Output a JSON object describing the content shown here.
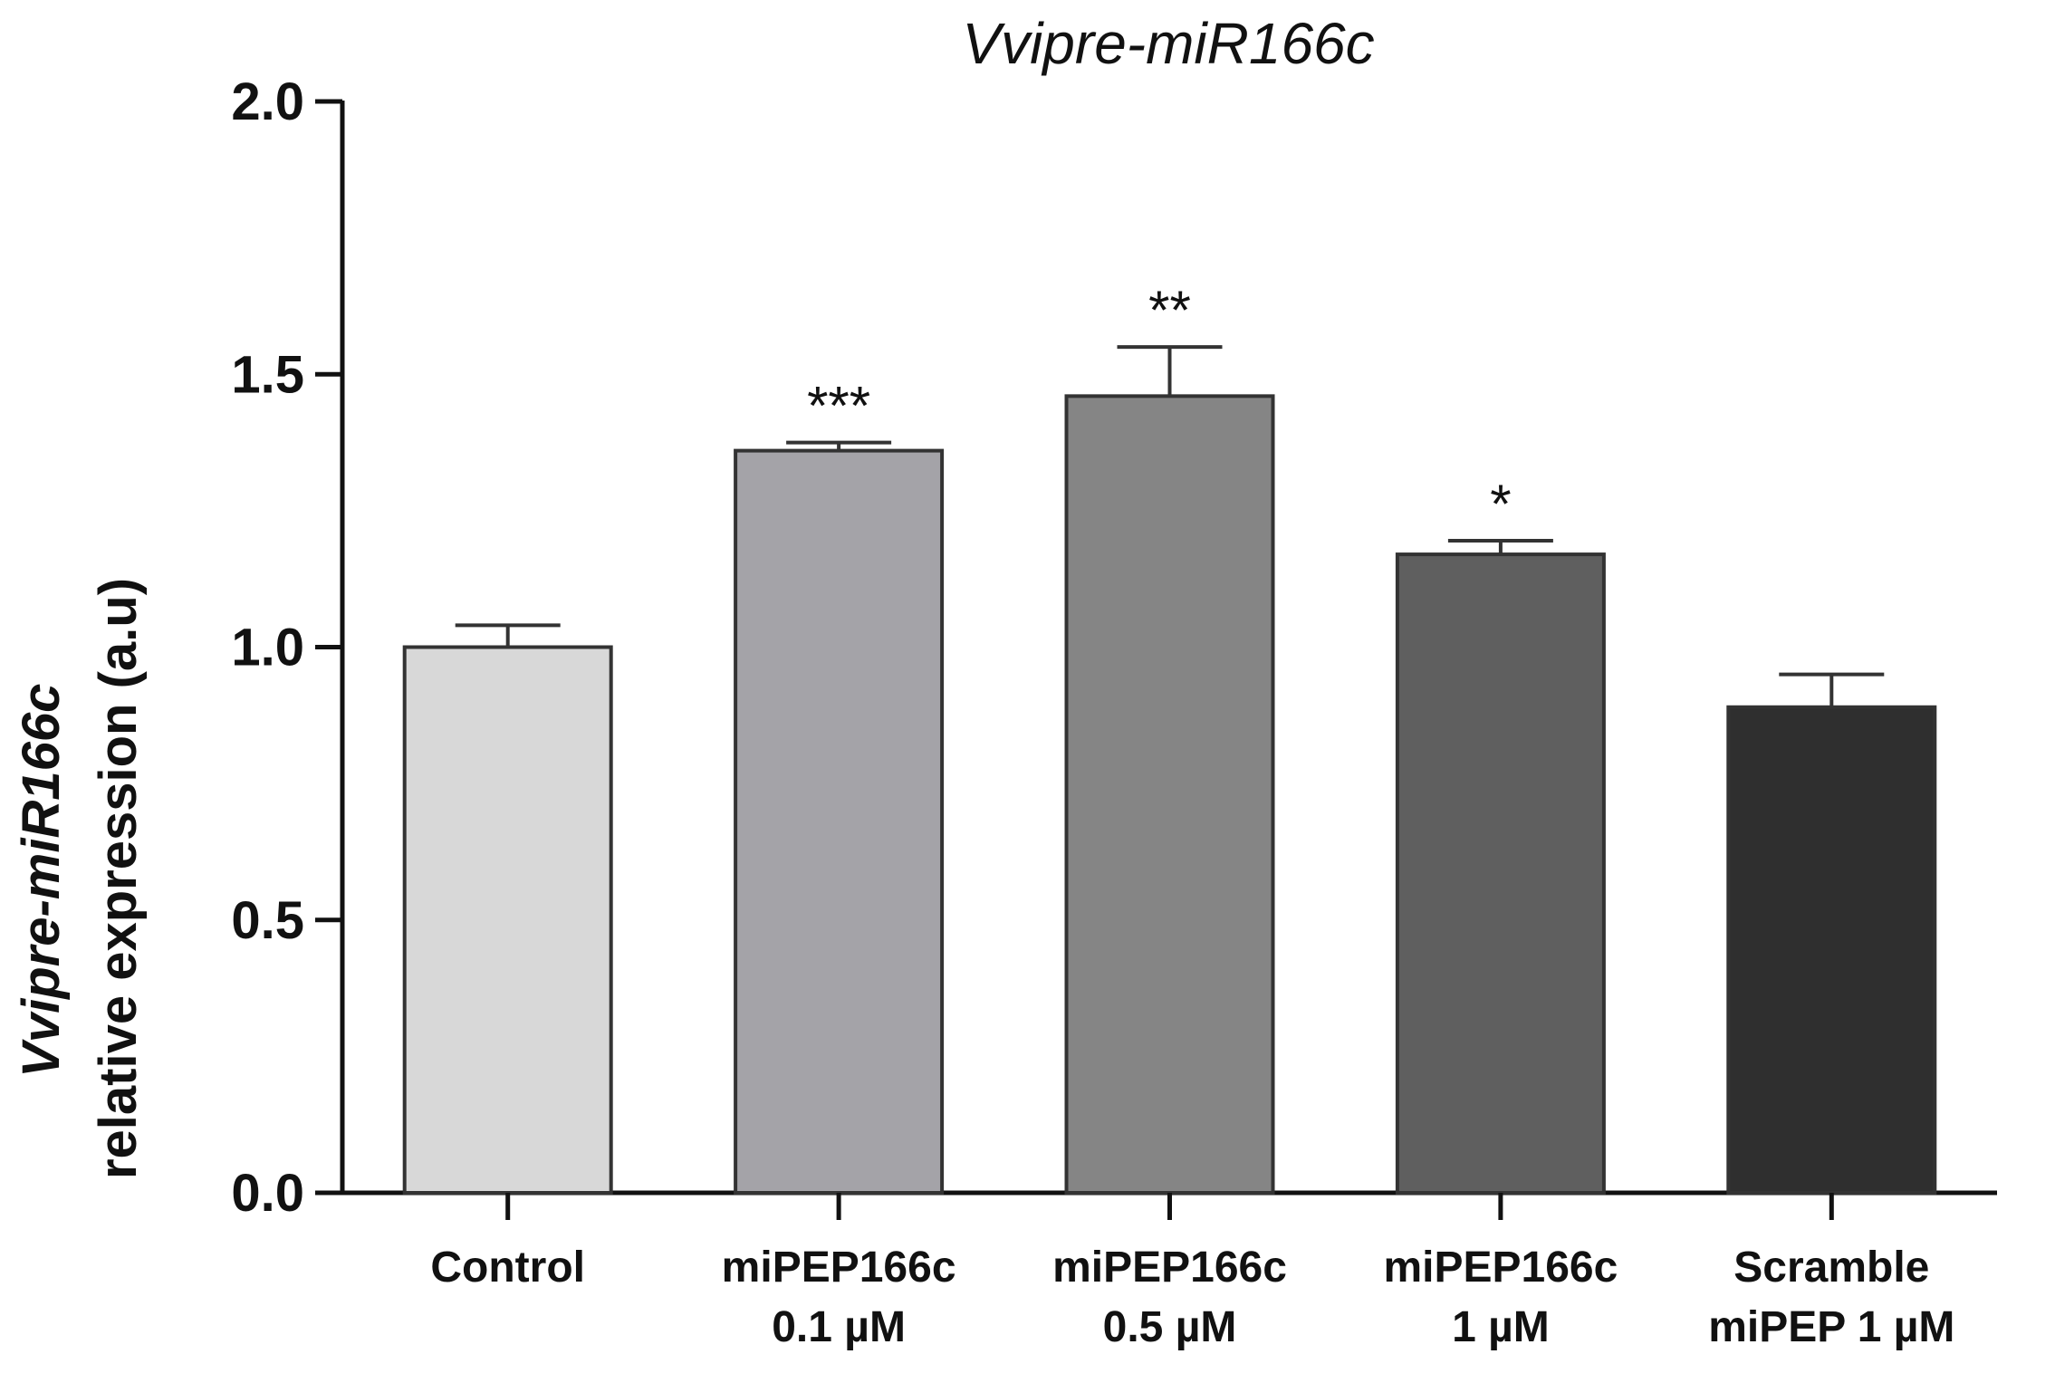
{
  "chart_data": {
    "type": "bar",
    "title": "Vvipre-miR166c",
    "ylabel_line1_italic": "Vvipre-miR166c",
    "ylabel_line2": "relative expression (a.u)",
    "ylim": [
      0,
      2.0
    ],
    "yticks": [
      "0.0",
      "0.5",
      "1.0",
      "1.5",
      "2.0"
    ],
    "ytick_values": [
      0,
      0.5,
      1.0,
      1.5,
      2.0
    ],
    "categories": [
      [
        "Control"
      ],
      [
        "miPEP166c",
        "0.1 µM"
      ],
      [
        "miPEP166c",
        "0.5 µM"
      ],
      [
        "miPEP166c",
        "1 µM"
      ],
      [
        "Scramble",
        "miPEP 1 µM"
      ]
    ],
    "values": [
      1.0,
      1.36,
      1.46,
      1.17,
      0.89
    ],
    "errors": [
      0.04,
      0.015,
      0.09,
      0.025,
      0.06
    ],
    "significance": [
      "",
      "***",
      "**",
      "*",
      ""
    ],
    "colors": [
      "#d8d8d8",
      "#a4a3a8",
      "#858585",
      "#5f5f5f",
      "#2f2f2f"
    ],
    "grid": false,
    "legend": "none"
  }
}
